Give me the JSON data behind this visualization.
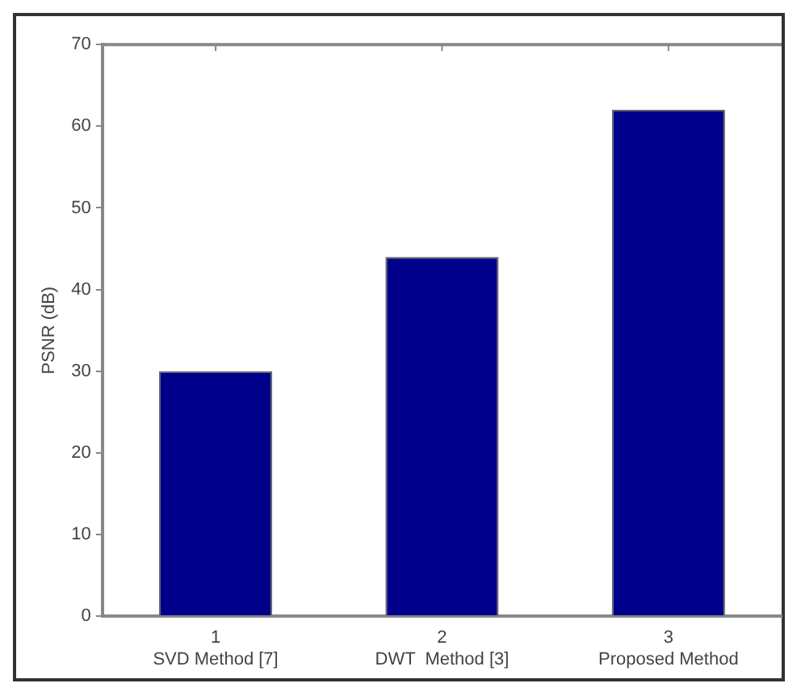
{
  "chart_data": {
    "type": "bar",
    "ylabel": "PSNR (dB)",
    "categories": [
      "1\nSVD Method [7]",
      "2\nDWT  Method [3]",
      "3\nProposed Method"
    ],
    "values": [
      30,
      44,
      62
    ],
    "color": "#00008b",
    "ylim": [
      0,
      70
    ],
    "yticks": [
      0,
      10,
      20,
      30,
      40,
      50,
      60,
      70
    ],
    "grid": false,
    "legend": false
  }
}
